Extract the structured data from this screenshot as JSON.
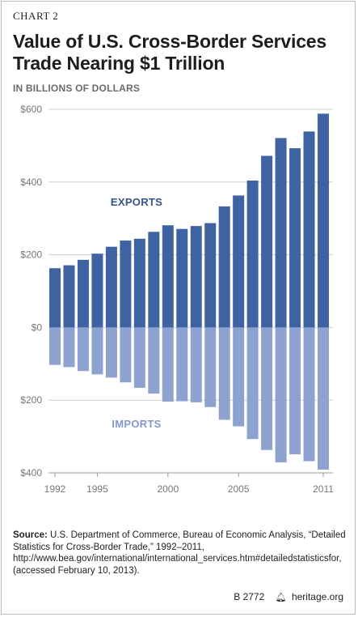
{
  "header": {
    "chart_label": "CHART 2",
    "title": "Value of U.S. Cross-Border Services Trade Nearing $1 Trillion",
    "subtitle": "IN BILLIONS OF DOLLARS"
  },
  "colors": {
    "exports": "#3f62a3",
    "imports": "#8ea2d0",
    "exports_text": "#34548f",
    "imports_text": "#8497c9",
    "grid": "#cfcfcf",
    "axis": "#9a9a9a"
  },
  "chart_data": {
    "type": "bar",
    "title": "Value of U.S. Cross-Border Services Trade Nearing $1 Trillion",
    "ylabel": "IN BILLIONS OF DOLLARS",
    "xlabel": "",
    "ylim": [
      -400,
      600
    ],
    "yticks": [
      600,
      400,
      200,
      0,
      -200,
      -400
    ],
    "ytick_labels": [
      "$600",
      "$400",
      "$200",
      "$0",
      "$200",
      "$400"
    ],
    "xtick_labels": [
      "1992",
      "1995",
      "2000",
      "2005",
      "2011"
    ],
    "xtick_years": [
      1992,
      1995,
      2000,
      2005,
      2011
    ],
    "categories": [
      1992,
      1993,
      1994,
      1995,
      1996,
      1997,
      1998,
      1999,
      2000,
      2001,
      2002,
      2003,
      2004,
      2005,
      2006,
      2007,
      2008,
      2009,
      2010,
      2011
    ],
    "grid": true,
    "series": [
      {
        "name": "EXPORTS",
        "values": [
          163,
          171,
          186,
          203,
          222,
          239,
          244,
          263,
          281,
          271,
          279,
          287,
          333,
          363,
          404,
          472,
          521,
          493,
          539,
          588
        ]
      },
      {
        "name": "IMPORTS",
        "values": [
          -103,
          -109,
          -120,
          -129,
          -138,
          -151,
          -166,
          -182,
          -204,
          -203,
          -206,
          -219,
          -254,
          -272,
          -307,
          -337,
          -371,
          -349,
          -368,
          -391
        ]
      }
    ]
  },
  "source": {
    "label": "Source:",
    "text": "U.S. Department of Commerce, Bureau of Economic Analysis, “Detailed Statistics for Cross-Border Trade,” 1992–2011, http://www.bea.gov/international/international_services.htm#detailedstatisticsfor, (accessed February 10, 2013)."
  },
  "footer": {
    "code": "B 2772",
    "site": "heritage.org",
    "bell_icon": "liberty-bell-icon"
  }
}
